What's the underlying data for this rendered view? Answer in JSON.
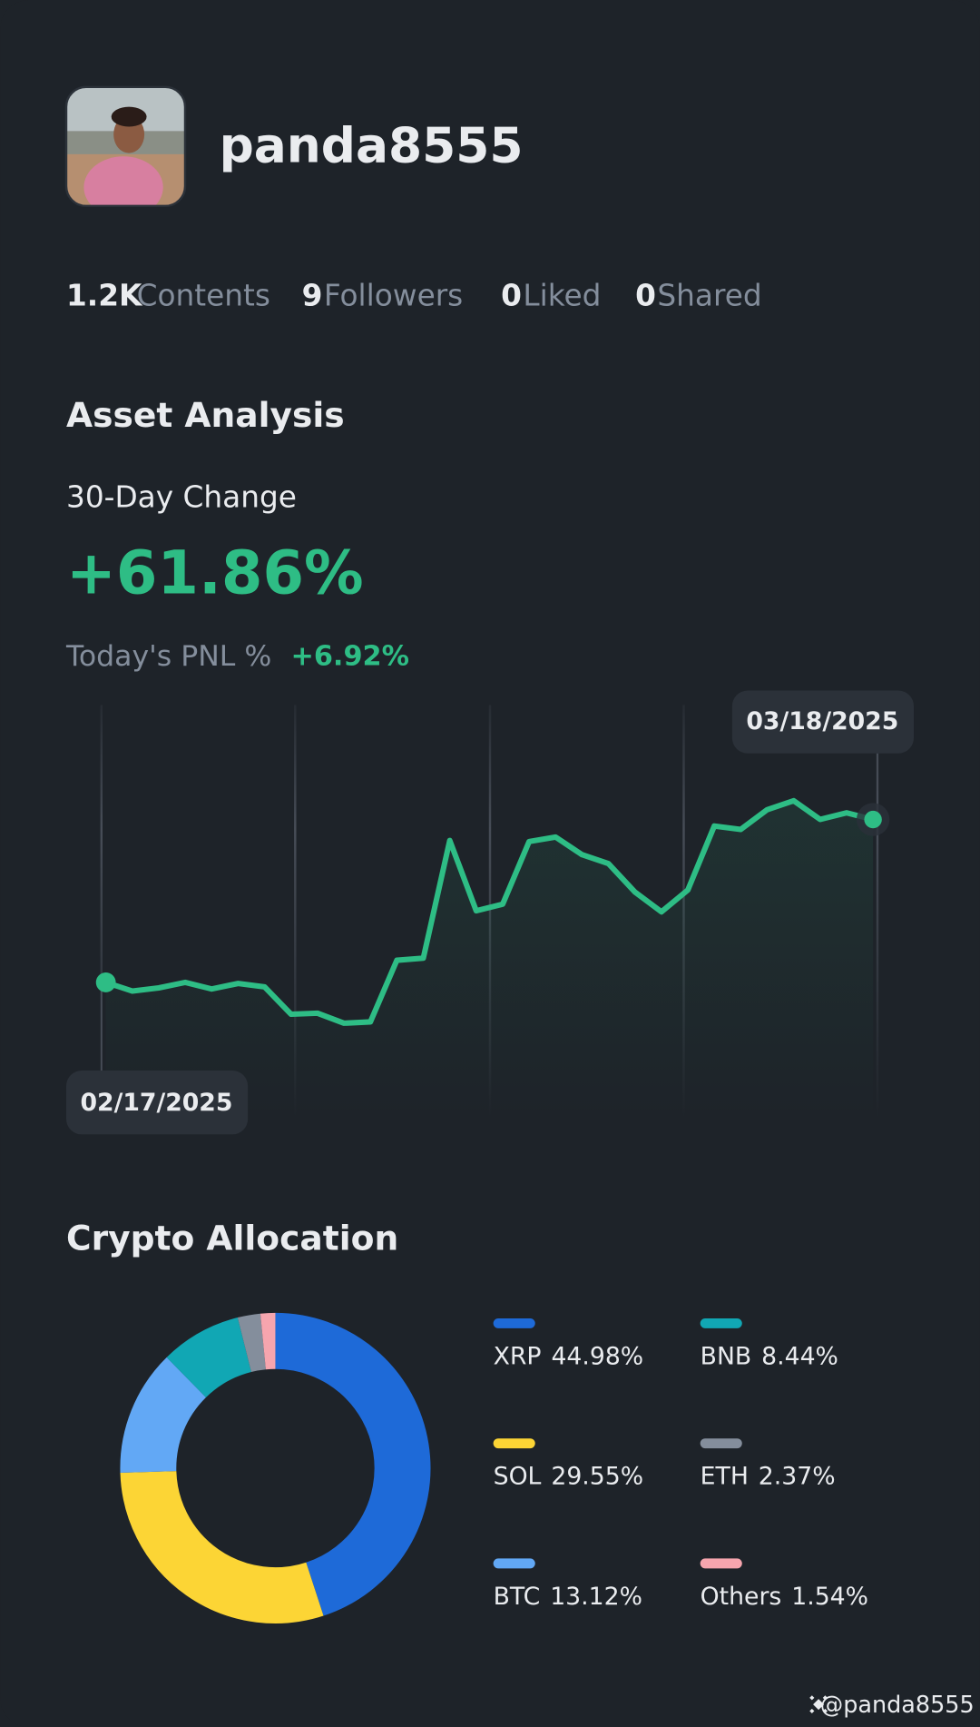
{
  "profile": {
    "username": "panda8555",
    "stats": [
      {
        "value": "1.2K",
        "label": "Contents"
      },
      {
        "value": 9,
        "label": "Followers"
      },
      {
        "value": 0,
        "label": "Liked"
      },
      {
        "value": 0,
        "label": "Shared"
      }
    ]
  },
  "asset_analysis": {
    "title": "Asset Analysis",
    "change_label": "30-Day Change",
    "change_value": "+61.86%",
    "pnl_label": "Today's PNL %",
    "pnl_value": "+6.92%"
  },
  "allocation_title": "Crypto Allocation",
  "watermark": "@panda8555",
  "chart_data": [
    {
      "type": "line",
      "start_label": "02/17/2025",
      "end_label": "03/18/2025",
      "color": "#2ebd85",
      "values": [
        0,
        -3.3,
        -2.1,
        0,
        -2.5,
        -0.4,
        -1.7,
        -12.1,
        -11.7,
        -15.5,
        -15.0,
        8.4,
        9.2,
        53.9,
        27.2,
        29.7,
        53.5,
        55.2,
        48.5,
        45.1,
        34.3,
        26.8,
        35.1,
        59.4,
        58.1,
        65.6,
        69.0,
        61.9,
        64.4,
        61.86
      ]
    },
    {
      "type": "donut",
      "series": [
        {
          "name": "XRP",
          "color": "#1e6ad8",
          "value": 44.98,
          "value_label": "44.98%"
        },
        {
          "name": "SOL",
          "color": "#fcd535",
          "value": 29.55,
          "value_label": "29.55%"
        },
        {
          "name": "BTC",
          "color": "#62a8f5",
          "value": 13.12,
          "value_label": "13.12%"
        },
        {
          "name": "BNB",
          "color": "#11a7b4",
          "value": 8.44,
          "value_label": "8.44%"
        },
        {
          "name": "ETH",
          "color": "#848e9c",
          "value": 2.37,
          "value_label": "2.37%"
        },
        {
          "name": "Others",
          "color": "#f6a5ae",
          "value": 1.54,
          "value_label": "1.54%"
        }
      ]
    }
  ]
}
